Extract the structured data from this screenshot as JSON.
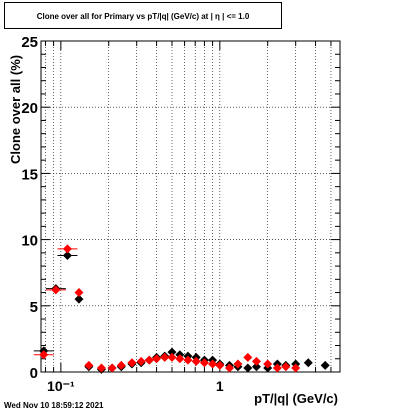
{
  "title": "Clone  over all for Primary vs pT/|q| (GeV/c) at |  η  | <= 1.0",
  "timestamp": "Wed Nov 10 18:59:12 2021",
  "colors": {
    "series_a": "#000000",
    "series_b": "#ff0000"
  },
  "chart_data": {
    "type": "scatter",
    "title": "Clone  over all for Primary vs pT/|q| (GeV/c) at |  η  | <= 1.0",
    "xlabel": "pT/|q| (GeV/c)",
    "ylabel": "Clone  over all (%)",
    "xscale": "log",
    "xlim": [
      0.075,
      5.7
    ],
    "ylim": [
      0,
      25
    ],
    "x_tick_labels": [
      "10⁻¹",
      "1"
    ],
    "y_tick_labels": [
      "0",
      "5",
      "10",
      "15",
      "20",
      "25"
    ],
    "grid": true,
    "series": [
      {
        "marker": "diamond",
        "color": "#000000",
        "points": [
          [
            0.078,
            1.6
          ],
          [
            0.093,
            6.3
          ],
          [
            0.11,
            8.8
          ],
          [
            0.13,
            5.5
          ],
          [
            0.15,
            0.4
          ],
          [
            0.18,
            0.2
          ],
          [
            0.21,
            0.3
          ],
          [
            0.24,
            0.4
          ],
          [
            0.28,
            0.6
          ],
          [
            0.32,
            0.7
          ],
          [
            0.36,
            0.9
          ],
          [
            0.4,
            1.1
          ],
          [
            0.45,
            1.2
          ],
          [
            0.5,
            1.5
          ],
          [
            0.56,
            1.3
          ],
          [
            0.63,
            1.2
          ],
          [
            0.71,
            1.1
          ],
          [
            0.8,
            0.9
          ],
          [
            0.9,
            0.9
          ],
          [
            1.0,
            0.6
          ],
          [
            1.15,
            0.5
          ],
          [
            1.3,
            0.4
          ],
          [
            1.5,
            0.3
          ],
          [
            1.7,
            0.4
          ],
          [
            2.0,
            0.3
          ],
          [
            2.3,
            0.6
          ],
          [
            2.6,
            0.5
          ],
          [
            3.0,
            0.6
          ],
          [
            3.6,
            0.7
          ],
          [
            4.6,
            0.5
          ]
        ]
      },
      {
        "marker": "diamond",
        "color": "#ff0000",
        "points": [
          [
            0.078,
            1.3
          ],
          [
            0.093,
            6.2
          ],
          [
            0.11,
            9.3
          ],
          [
            0.13,
            6.0
          ],
          [
            0.15,
            0.5
          ],
          [
            0.18,
            0.3
          ],
          [
            0.21,
            0.3
          ],
          [
            0.24,
            0.5
          ],
          [
            0.28,
            0.7
          ],
          [
            0.32,
            0.8
          ],
          [
            0.36,
            0.9
          ],
          [
            0.4,
            1.0
          ],
          [
            0.45,
            1.1
          ],
          [
            0.5,
            1.1
          ],
          [
            0.56,
            1.0
          ],
          [
            0.63,
            0.9
          ],
          [
            0.71,
            0.8
          ],
          [
            0.8,
            0.7
          ],
          [
            0.9,
            0.6
          ],
          [
            1.0,
            0.5
          ],
          [
            1.15,
            0.3
          ],
          [
            1.3,
            0.6
          ],
          [
            1.5,
            1.1
          ],
          [
            1.7,
            0.8
          ],
          [
            2.0,
            0.6
          ],
          [
            2.3,
            0.3
          ],
          [
            2.6,
            0.4
          ],
          [
            3.0,
            0.3
          ]
        ]
      }
    ]
  }
}
